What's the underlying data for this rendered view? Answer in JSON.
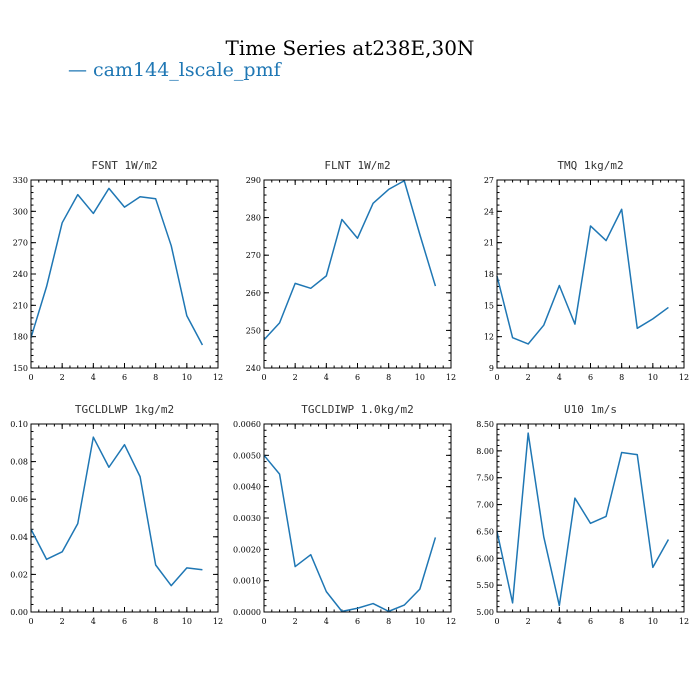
{
  "title": "Time Series at238E,30N",
  "legend": {
    "label": "— cam144_lscale_pmf",
    "color": "#1f77b4"
  },
  "chart_data": [
    {
      "type": "line",
      "title": "FSNT   1W/m2",
      "xlim": [
        0,
        12
      ],
      "xticks": [
        "0",
        "2",
        "4",
        "6",
        "8",
        "10",
        "12"
      ],
      "ylim": [
        150,
        330
      ],
      "yticks": [
        "150",
        "180",
        "210",
        "240",
        "270",
        "300",
        "330"
      ],
      "series": [
        {
          "x": [
            0,
            1,
            2,
            3,
            4,
            5,
            6,
            7,
            8,
            9,
            10,
            11
          ],
          "values": [
            179,
            228,
            289,
            316,
            298,
            322,
            304,
            314,
            312,
            267,
            200,
            172
          ]
        }
      ]
    },
    {
      "type": "line",
      "title": "FLNT   1W/m2",
      "xlim": [
        0,
        12
      ],
      "xticks": [
        "0",
        "2",
        "4",
        "6",
        "8",
        "10",
        "12"
      ],
      "ylim": [
        240,
        290
      ],
      "yticks": [
        "240",
        "250",
        "260",
        "270",
        "280",
        "290"
      ],
      "series": [
        {
          "x": [
            0,
            1,
            2,
            3,
            4,
            5,
            6,
            7,
            8,
            9,
            10,
            11
          ],
          "values": [
            247.5,
            252,
            262.5,
            261.2,
            264.5,
            279.5,
            274.5,
            283.8,
            287.5,
            289.8,
            275.5,
            261.8
          ]
        }
      ]
    },
    {
      "type": "line",
      "title": "TMQ   1kg/m2",
      "xlim": [
        0,
        12
      ],
      "xticks": [
        "0",
        "2",
        "4",
        "6",
        "8",
        "10",
        "12"
      ],
      "ylim": [
        9,
        27
      ],
      "yticks": [
        "9",
        "12",
        "15",
        "18",
        "21",
        "24",
        "27"
      ],
      "series": [
        {
          "x": [
            0,
            1,
            2,
            3,
            4,
            5,
            6,
            7,
            8,
            9,
            10,
            11
          ],
          "values": [
            17.8,
            11.9,
            11.3,
            13.1,
            16.9,
            13.2,
            22.6,
            21.2,
            24.2,
            12.8,
            13.7,
            14.8
          ]
        }
      ]
    },
    {
      "type": "line",
      "title": "TGCLDLWP   1kg/m2",
      "xlim": [
        0,
        12
      ],
      "xticks": [
        "0",
        "2",
        "4",
        "6",
        "8",
        "10",
        "12"
      ],
      "ylim": [
        0,
        0.1
      ],
      "yticks": [
        "0.00",
        "0.02",
        "0.04",
        "0.06",
        "0.08",
        "0.10"
      ],
      "series": [
        {
          "x": [
            0,
            1,
            2,
            3,
            4,
            5,
            6,
            7,
            8,
            9,
            10,
            11
          ],
          "values": [
            0.044,
            0.028,
            0.032,
            0.047,
            0.093,
            0.077,
            0.089,
            0.072,
            0.025,
            0.014,
            0.0235,
            0.0225
          ]
        }
      ]
    },
    {
      "type": "line",
      "title": "TGCLDIWP   1.0kg/m2",
      "xlim": [
        0,
        12
      ],
      "xticks": [
        "0",
        "2",
        "4",
        "6",
        "8",
        "10",
        "12"
      ],
      "ylim": [
        0,
        0.006
      ],
      "yticks": [
        "0.0000",
        "0.0010",
        "0.0020",
        "0.0030",
        "0.0040",
        "0.0050",
        "0.0060"
      ],
      "series": [
        {
          "x": [
            0,
            1,
            2,
            3,
            4,
            5,
            6,
            7,
            8,
            9,
            10,
            11
          ],
          "values": [
            0.005,
            0.0044,
            0.00145,
            0.00183,
            0.00065,
            2e-05,
            0.00012,
            0.00027,
            2e-05,
            0.00022,
            0.00073,
            0.00238
          ]
        }
      ]
    },
    {
      "type": "line",
      "title": "U10   1m/s",
      "xlim": [
        0,
        12
      ],
      "xticks": [
        "0",
        "2",
        "4",
        "6",
        "8",
        "10",
        "12"
      ],
      "ylim": [
        5,
        8.5
      ],
      "yticks": [
        "5.00",
        "5.50",
        "6.00",
        "6.50",
        "7.00",
        "7.50",
        "8.00",
        "8.50"
      ],
      "series": [
        {
          "x": [
            0,
            1,
            2,
            3,
            4,
            5,
            6,
            7,
            8,
            9,
            10,
            11
          ],
          "values": [
            6.5,
            5.17,
            8.33,
            6.4,
            5.12,
            7.12,
            6.65,
            6.78,
            7.97,
            7.93,
            5.83,
            6.35
          ]
        }
      ]
    }
  ]
}
